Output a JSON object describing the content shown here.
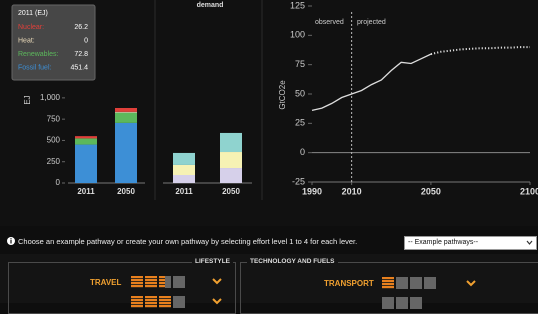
{
  "supply_chart": {
    "type": "bar",
    "stacked": true,
    "unit": "EJ",
    "categories": [
      "2011",
      "2050"
    ],
    "ylim": [
      0,
      1950
    ],
    "yticks": [
      0,
      250,
      500,
      750,
      {
        "value": 1000,
        "label": "1,000"
      }
    ],
    "series": [
      {
        "name": "Fossil fuel:",
        "color": "#3d8fd6",
        "values": [
          451.4,
          706
        ]
      },
      {
        "name": "Renewables:",
        "color": "#5cb85c",
        "values": [
          72.8,
          120
        ]
      },
      {
        "name": "Heat:",
        "color": "#e8d8b8",
        "values": [
          0,
          10
        ]
      },
      {
        "name": "Nuclear:",
        "color": "#e0403a",
        "values": [
          26.2,
          45
        ]
      }
    ],
    "tooltip": {
      "title": "2011 (EJ)"
    }
  },
  "demand_chart": {
    "type": "bar",
    "stacked": true,
    "title": "demand",
    "categories": [
      "2011",
      "2050"
    ],
    "ylim": [
      0,
      1950
    ],
    "series": [
      {
        "color": "#d6d0ea",
        "values": [
          94,
          176
        ]
      },
      {
        "color": "#f6f2b4",
        "values": [
          118,
          188
        ]
      },
      {
        "color": "#8fd3cf",
        "values": [
          141,
          224
        ]
      }
    ]
  },
  "emissions_chart": {
    "type": "line",
    "ylabel": "GtCO2e",
    "xlim": [
      1990,
      2100
    ],
    "ylim": [
      -25,
      125
    ],
    "xticks": [
      1990,
      2010,
      2050,
      2100
    ],
    "yticks": [
      -25,
      0,
      25,
      50,
      75,
      100,
      125
    ],
    "divider_x": 2010,
    "annotations": [
      "observed",
      "projected"
    ],
    "series": [
      {
        "color": "#dddddd",
        "style": "solid",
        "x": [
          1990,
          1995,
          2000,
          2005,
          2010,
          2015,
          2020,
          2025,
          2030,
          2035,
          2040,
          2045,
          2050
        ],
        "values": [
          36,
          38,
          42,
          47,
          50,
          53,
          58,
          62,
          70,
          77,
          76,
          80,
          84
        ]
      },
      {
        "color": "#dddddd",
        "style": "dotted",
        "x": [
          2050,
          2055,
          2060,
          2065,
          2070,
          2075,
          2080,
          2085,
          2090,
          2095,
          2100
        ],
        "values": [
          84,
          86,
          87,
          88,
          88.5,
          89,
          89,
          89.5,
          89.5,
          90,
          90
        ]
      }
    ]
  },
  "controls": {
    "instruction": "Choose an example pathway or create your own pathway by selecting effort level 1 to 4 for each lever.",
    "select": "-- Example pathways--",
    "groups": [
      {
        "title": "LIFESTYLE",
        "levers": [
          "TRAVEL"
        ]
      },
      {
        "title": "TECHNOLOGY AND FUELS",
        "levers": [
          "TRANSPORT"
        ]
      }
    ]
  }
}
